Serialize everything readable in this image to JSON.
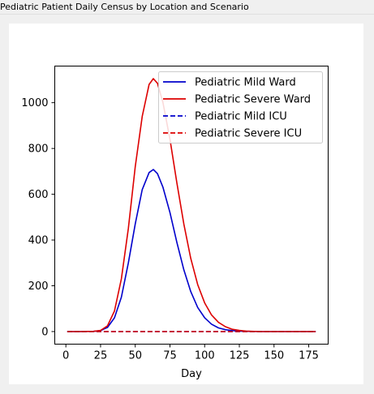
{
  "window": {
    "title": "Pediatric Patient Daily Census by Location and Scenario"
  },
  "chart_data": {
    "type": "line",
    "title": "",
    "xlabel": "Day",
    "ylabel": "",
    "xlim": [
      -8,
      189
    ],
    "ylim": [
      -55,
      1160
    ],
    "xticks": [
      0,
      25,
      50,
      75,
      100,
      125,
      150,
      175
    ],
    "yticks": [
      0,
      200,
      400,
      600,
      800,
      1000
    ],
    "grid": false,
    "legend_position": "upper-right",
    "x": [
      1,
      10,
      20,
      25,
      30,
      35,
      40,
      45,
      50,
      55,
      60,
      63,
      66,
      70,
      75,
      80,
      85,
      90,
      95,
      100,
      105,
      110,
      115,
      120,
      125,
      130,
      140,
      150,
      160,
      170,
      180
    ],
    "series": [
      {
        "name": "Pediatric Mild Ward",
        "color": "#0000cc",
        "dash": "solid",
        "values": [
          0,
          0,
          1,
          4,
          18,
          60,
          150,
          300,
          470,
          620,
          695,
          708,
          690,
          630,
          520,
          390,
          270,
          175,
          105,
          60,
          32,
          16,
          8,
          4,
          2,
          1,
          0,
          0,
          0,
          0,
          0
        ]
      },
      {
        "name": "Pediatric Severe Ward",
        "color": "#dd0000",
        "dash": "solid",
        "values": [
          0,
          0,
          1,
          5,
          25,
          90,
          230,
          450,
          720,
          940,
          1080,
          1105,
          1085,
          1000,
          840,
          650,
          470,
          320,
          205,
          125,
          72,
          40,
          21,
          10,
          5,
          2,
          0,
          0,
          0,
          0,
          0
        ]
      },
      {
        "name": "Pediatric Mild ICU",
        "color": "#0000cc",
        "dash": "dashed",
        "values": [
          0,
          0,
          0,
          0,
          0,
          0,
          0,
          0,
          0,
          0,
          0,
          0,
          0,
          0,
          0,
          0,
          0,
          0,
          0,
          0,
          0,
          0,
          0,
          0,
          0,
          0,
          0,
          0,
          0,
          0,
          0
        ]
      },
      {
        "name": "Pediatric Severe ICU",
        "color": "#dd0000",
        "dash": "dashed",
        "values": [
          0,
          0,
          0,
          0,
          0,
          0,
          0,
          0,
          0,
          0,
          0,
          0,
          0,
          0,
          0,
          0,
          0,
          0,
          0,
          0,
          0,
          0,
          0,
          0,
          0,
          0,
          0,
          0,
          0,
          0,
          0
        ]
      }
    ]
  }
}
